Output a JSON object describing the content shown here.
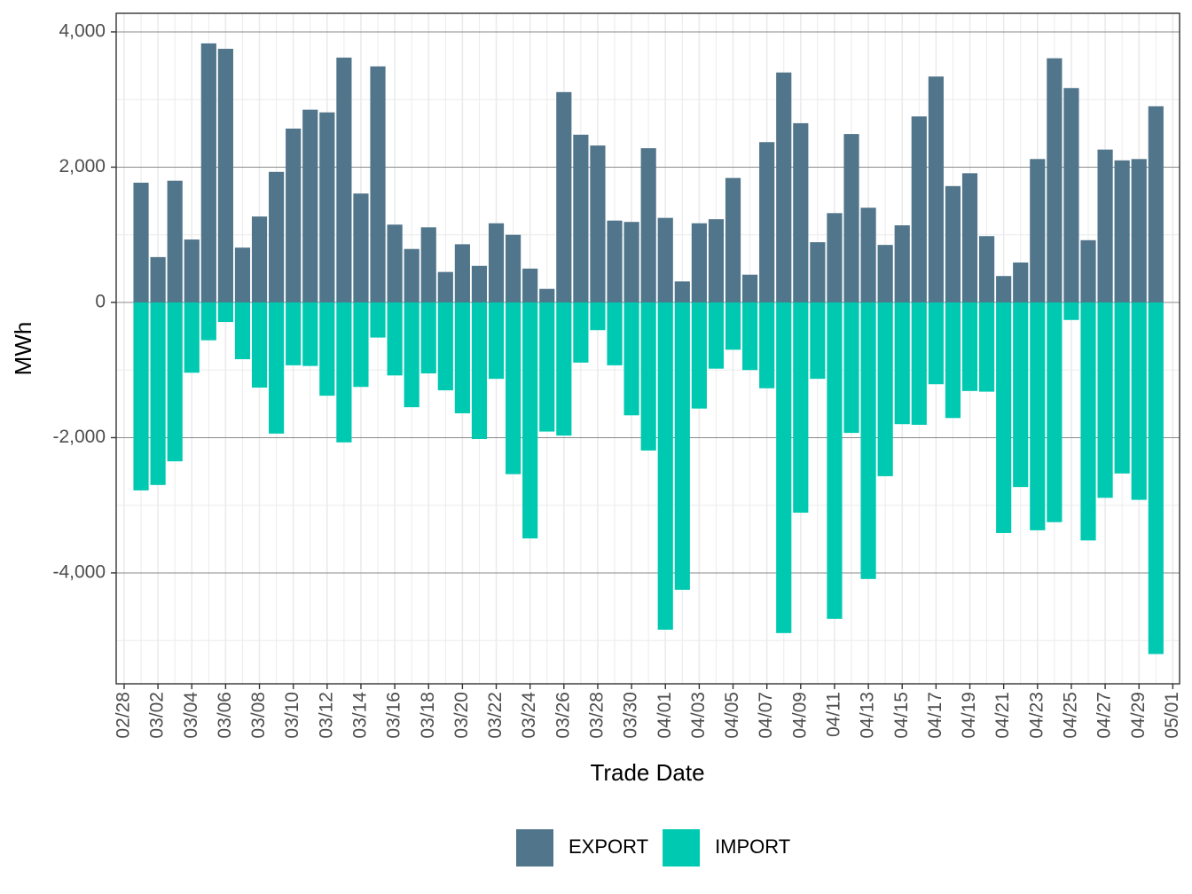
{
  "chart_data": {
    "type": "bar",
    "x_label": "Trade Date",
    "y_label": "MWh",
    "x": [
      1,
      2,
      3,
      4,
      5,
      6,
      7,
      8,
      9,
      10,
      11,
      12,
      13,
      14,
      15,
      16,
      17,
      18,
      19,
      20,
      21,
      22,
      23,
      24,
      25,
      26,
      27,
      28,
      29,
      30,
      31,
      32,
      33,
      34,
      35,
      36,
      37,
      38,
      39,
      40,
      41,
      42,
      43,
      44,
      45,
      46,
      47,
      48,
      49,
      50,
      51,
      52,
      53,
      54,
      55,
      56,
      57,
      58,
      59,
      60,
      61
    ],
    "series": [
      {
        "name": "EXPORT",
        "color": "#51758a",
        "values": [
          1770,
          670,
          1800,
          930,
          3830,
          3750,
          810,
          1270,
          1930,
          2570,
          2850,
          2810,
          3620,
          1610,
          3490,
          1150,
          790,
          1110,
          450,
          860,
          540,
          1170,
          1000,
          500,
          200,
          3110,
          2480,
          2320,
          1210,
          1190,
          2280,
          1250,
          310,
          1170,
          1230,
          1840,
          410,
          2370,
          3400,
          2650,
          890,
          1320,
          2490,
          1400,
          850,
          1140,
          2750,
          3340,
          1720,
          1910,
          980,
          390,
          590,
          2120,
          3610,
          3170,
          920,
          2260,
          2100,
          2120,
          2900
        ]
      },
      {
        "name": "IMPORT",
        "color": "#00c9b1",
        "values": [
          -2780,
          -2700,
          -2350,
          -1040,
          -560,
          -290,
          -840,
          -1260,
          -1940,
          -930,
          -940,
          -1380,
          -2070,
          -1250,
          -520,
          -1080,
          -1550,
          -1050,
          -1300,
          -1640,
          -2020,
          -1130,
          -2540,
          -3490,
          -1910,
          -1970,
          -890,
          -410,
          -930,
          -1670,
          -2190,
          -4840,
          -4250,
          -1570,
          -980,
          -700,
          -1000,
          -1270,
          -4890,
          -3110,
          -1130,
          -4680,
          -1930,
          -4090,
          -2570,
          -1800,
          -1810,
          -1210,
          -1710,
          -1310,
          -1320,
          -3410,
          -2730,
          -3370,
          -3250,
          -260,
          -3520,
          -2890,
          -2530,
          -2920,
          -5200
        ]
      }
    ],
    "xlim": [
      -0.47,
      62.4
    ],
    "xticks": [
      {
        "value": 0,
        "label": "02/28"
      },
      {
        "value": 2,
        "label": "03/02"
      },
      {
        "value": 4,
        "label": "03/04"
      },
      {
        "value": 6,
        "label": "03/06"
      },
      {
        "value": 8,
        "label": "03/08"
      },
      {
        "value": 10,
        "label": "03/10"
      },
      {
        "value": 12,
        "label": "03/12"
      },
      {
        "value": 14,
        "label": "03/14"
      },
      {
        "value": 16,
        "label": "03/16"
      },
      {
        "value": 18,
        "label": "03/18"
      },
      {
        "value": 20,
        "label": "03/20"
      },
      {
        "value": 22,
        "label": "03/22"
      },
      {
        "value": 24,
        "label": "03/24"
      },
      {
        "value": 26,
        "label": "03/26"
      },
      {
        "value": 28,
        "label": "03/28"
      },
      {
        "value": 30,
        "label": "03/30"
      },
      {
        "value": 32,
        "label": "04/01"
      },
      {
        "value": 34,
        "label": "04/03"
      },
      {
        "value": 36,
        "label": "04/05"
      },
      {
        "value": 38,
        "label": "04/07"
      },
      {
        "value": 40,
        "label": "04/09"
      },
      {
        "value": 42,
        "label": "04/11"
      },
      {
        "value": 44,
        "label": "04/13"
      },
      {
        "value": 46,
        "label": "04/15"
      },
      {
        "value": 48,
        "label": "04/17"
      },
      {
        "value": 50,
        "label": "04/19"
      },
      {
        "value": 52,
        "label": "04/21"
      },
      {
        "value": 54,
        "label": "04/23"
      },
      {
        "value": 56,
        "label": "04/25"
      },
      {
        "value": 58,
        "label": "04/27"
      },
      {
        "value": 60,
        "label": "04/29"
      },
      {
        "value": 62,
        "label": "05/01"
      }
    ],
    "ylim": [
      -5640,
      4275
    ],
    "yticks": [
      {
        "value": -4000,
        "label": "-4,000"
      },
      {
        "value": -2000,
        "label": "-2,000"
      },
      0,
      {
        "value": 2000,
        "label": "2,000"
      },
      {
        "value": 4000,
        "label": "4,000"
      }
    ],
    "grid": true,
    "legend": "bottom"
  }
}
